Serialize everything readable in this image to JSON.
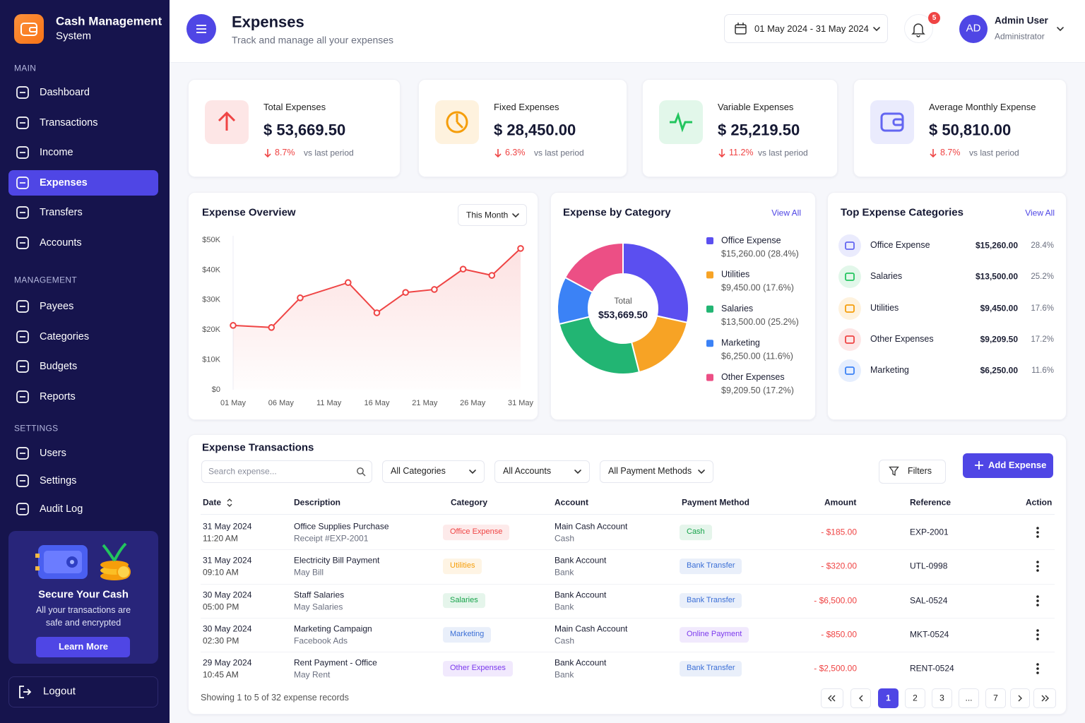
{
  "sidebar": {
    "brand_title": "Cash Management",
    "brand_subtitle": "System",
    "active": "Expenses",
    "sections": [
      {
        "title": "MAIN",
        "items": [
          "Dashboard",
          "Transactions",
          "Income",
          "Expenses",
          "Transfers",
          "Accounts"
        ]
      },
      {
        "title": "MANAGEMENT",
        "items": [
          "Payees",
          "Categories",
          "Budgets",
          "Reports"
        ]
      },
      {
        "title": "SETTINGS",
        "items": [
          "Users",
          "Settings",
          "Audit Log"
        ]
      }
    ],
    "promo": {
      "title": "Secure Your Cash",
      "text_line1": "All your transactions are",
      "text_line2": "safe and encrypted",
      "button": "Learn More"
    },
    "logout": "Logout"
  },
  "header": {
    "title": "Expenses",
    "subtitle": "Track and manage all your expenses",
    "date_range": "01 May 2024 - 31 May 2024",
    "notifications": 5,
    "avatar": "AD",
    "user_name": "Admin User",
    "user_role": "Administrator"
  },
  "stats": [
    {
      "label": "Total Expenses",
      "value": "$ 53,669.50",
      "change": "8.7%",
      "note": "vs last period",
      "color": "#ef4444"
    },
    {
      "label": "Fixed Expenses",
      "value": "$ 28,450.00",
      "change": "6.3%",
      "note": "vs last period",
      "color": "#f59e0b"
    },
    {
      "label": "Variable Expenses",
      "value": "$ 25,219.50",
      "change": "11.2%",
      "note": "vs last period",
      "color": "#22c55e"
    },
    {
      "label": "Average Monthly Expense",
      "value": "$ 50,810.00",
      "change": "8.7%",
      "note": "vs last period",
      "color": "#6366f1"
    }
  ],
  "overview": {
    "title": "Expense Overview",
    "filter": "This Month",
    "chart": {
      "type": "line",
      "color": "#ef4444",
      "x": [
        1,
        5,
        8,
        13,
        16,
        19,
        22,
        25,
        28,
        31
      ],
      "values": [
        21500,
        20800,
        30700,
        35800,
        25700,
        32500,
        33500,
        40300,
        38200,
        47200
      ],
      "xlim": [
        1,
        31
      ],
      "xticks": [
        {
          "value": 1,
          "label": "01 May"
        },
        {
          "value": 6,
          "label": "06 May"
        },
        {
          "value": 11,
          "label": "11 May"
        },
        {
          "value": 16,
          "label": "16 May"
        },
        {
          "value": 21,
          "label": "21 May"
        },
        {
          "value": 26,
          "label": "26 May"
        },
        {
          "value": 31,
          "label": "31 May"
        }
      ],
      "ylim": [
        0,
        50000
      ],
      "yticks": [
        {
          "value": 0,
          "label": "$0"
        },
        {
          "value": 10000,
          "label": "$10K"
        },
        {
          "value": 20000,
          "label": "$20K"
        },
        {
          "value": 30000,
          "label": "$30K"
        },
        {
          "value": 40000,
          "label": "$40K"
        },
        {
          "value": 50000,
          "label": "$50K"
        }
      ],
      "grid": false
    }
  },
  "category": {
    "title": "Expense by Category",
    "link": "View All",
    "total_label": "Total",
    "total_value": "$53,669.50",
    "chart": {
      "type": "donut",
      "categories": [
        "Office Expense",
        "Utilities",
        "Salaries",
        "Marketing",
        "Other Expenses"
      ],
      "values": [
        15260,
        9450,
        13500,
        6250,
        9209.5
      ],
      "value_labels": [
        "$15,260.00 (28.4%)",
        "$9,450.00 (17.6%)",
        "$13,500.00 (25.2%)",
        "$6,250.00 (11.6%)",
        "$9,209.50 (17.2%)"
      ],
      "colors": [
        "#5b4ff0",
        "#f7a325",
        "#22b573",
        "#3b82f6",
        "#ec4f85"
      ]
    }
  },
  "top_categories": {
    "title": "Top Expense Categories",
    "link": "View All",
    "rows": [
      {
        "name": "Office Expense",
        "amount": "$15,260.00",
        "share": "28.4%",
        "color": "#6366f1"
      },
      {
        "name": "Salaries",
        "amount": "$13,500.00",
        "share": "25.2%",
        "color": "#22c55e"
      },
      {
        "name": "Utilities",
        "amount": "$9,450.00",
        "share": "17.6%",
        "color": "#f59e0b"
      },
      {
        "name": "Other Expenses",
        "amount": "$9,209.50",
        "share": "17.2%",
        "color": "#ef4444"
      },
      {
        "name": "Marketing",
        "amount": "$6,250.00",
        "share": "11.6%",
        "color": "#3b82f6"
      }
    ]
  },
  "transactions": {
    "title": "Expense Transactions",
    "search_placeholder": "Search expense...",
    "filters": [
      "All Categories",
      "All Accounts",
      "All Payment Methods"
    ],
    "filters_button": "Filters",
    "add_button": "Add Expense",
    "columns": [
      "Date",
      "Description",
      "Category",
      "Account",
      "Payment Method",
      "Amount",
      "Reference",
      "Action"
    ],
    "rows": [
      {
        "date": "31 May 2024",
        "time": "11:20 AM",
        "description": "Office Supplies Purchase",
        "detail": "Receipt #EXP-2001",
        "category": "Office Expense",
        "category_color": "#ef4444",
        "account": "Main Cash Account",
        "account_type": "Cash",
        "method": "Cash",
        "method_color": "#16a34a",
        "amount": "- $185.00",
        "reference": "EXP-2001"
      },
      {
        "date": "31 May 2024",
        "time": "09:10 AM",
        "description": "Electricity Bill Payment",
        "detail": "May Bill",
        "category": "Utilities",
        "category_color": "#f59e0b",
        "account": "Bank Account",
        "account_type": "Bank",
        "method": "Bank Transfer",
        "method_color": "#3b6fd6",
        "amount": "- $320.00",
        "reference": "UTL-0998"
      },
      {
        "date": "30 May 2024",
        "time": "05:00 PM",
        "description": "Staff Salaries",
        "detail": "May Salaries",
        "category": "Salaries",
        "category_color": "#16a34a",
        "account": "Bank Account",
        "account_type": "Bank",
        "method": "Bank Transfer",
        "method_color": "#3b6fd6",
        "amount": "- $6,500.00",
        "reference": "SAL-0524"
      },
      {
        "date": "30 May 2024",
        "time": "02:30 PM",
        "description": "Marketing Campaign",
        "detail": "Facebook Ads",
        "category": "Marketing",
        "category_color": "#3b6fd6",
        "account": "Main Cash Account",
        "account_type": "Cash",
        "method": "Online Payment",
        "method_color": "#7c3aed",
        "amount": "- $850.00",
        "reference": "MKT-0524"
      },
      {
        "date": "29 May 2024",
        "time": "10:45 AM",
        "description": "Rent Payment - Office",
        "detail": "May Rent",
        "category": "Other Expenses",
        "category_color": "#7c3aed",
        "account": "Bank Account",
        "account_type": "Bank",
        "method": "Bank Transfer",
        "method_color": "#3b6fd6",
        "amount": "- $2,500.00",
        "reference": "RENT-0524"
      }
    ],
    "footer": "Showing 1 to 5 of 32 expense records",
    "pages": [
      "1",
      "2",
      "3",
      "...",
      "7"
    ],
    "current_page": "1"
  }
}
